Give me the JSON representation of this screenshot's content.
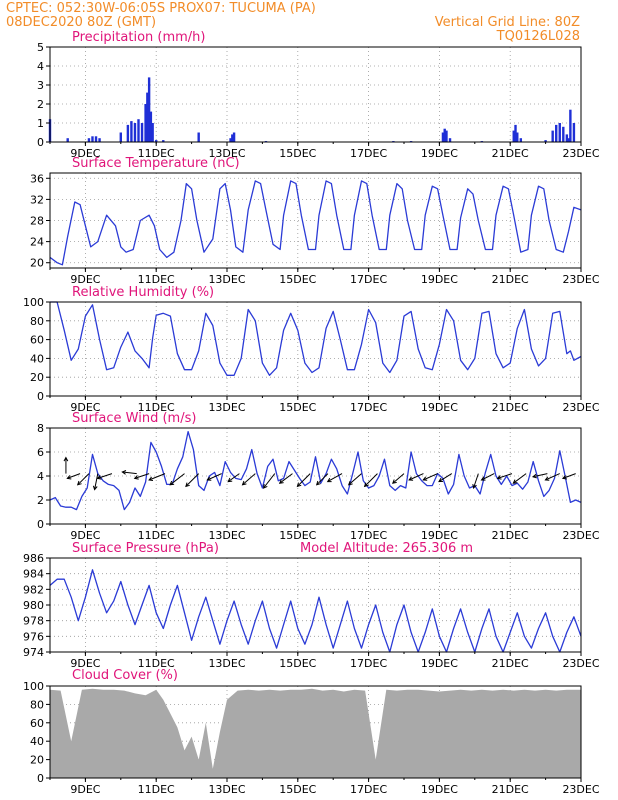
{
  "header": {
    "line1": "CPTEC:   052:30W-06:05S   PROX07: TUCUMA (PA)",
    "line2": "08DEC2020 80Z (GMT)",
    "right1": "Vertical Grid Line: 80Z",
    "right2": "TQ0126L028"
  },
  "colors": {
    "header": "#f28c28",
    "title": "#e0157a",
    "line": "#2b3bd6",
    "bar": "#1f2fd6",
    "cloud": "#a9a9a9",
    "wind_arrow": "#000000",
    "grid": "#999999"
  },
  "x_axis": {
    "start_day": 8,
    "end_day": 23,
    "tick_labels": [
      "9DEC",
      "11DEC",
      "13DEC",
      "15DEC",
      "17DEC",
      "19DEC",
      "21DEC",
      "23DEC"
    ],
    "tick_days": [
      9,
      11,
      13,
      15,
      17,
      19,
      21,
      23
    ]
  },
  "chart_data": [
    {
      "type": "bar",
      "title": "Precipitation (mm/h)",
      "ylim": [
        0,
        5
      ],
      "yticks": [
        0,
        1,
        2,
        3,
        4,
        5
      ],
      "x": [
        8.0,
        8.5,
        9.1,
        9.2,
        9.3,
        9.4,
        10.0,
        10.2,
        10.3,
        10.4,
        10.5,
        10.6,
        10.7,
        10.75,
        10.8,
        10.85,
        10.9,
        11.0,
        11.2,
        12.2,
        13.1,
        13.15,
        13.2,
        14.1,
        17.7,
        18.2,
        19.1,
        19.15,
        19.2,
        19.3,
        20.2,
        21.1,
        21.15,
        21.2,
        21.3,
        22.0,
        22.2,
        22.3,
        22.4,
        22.5,
        22.6,
        22.65,
        22.7,
        22.8
      ],
      "values": [
        1.2,
        0.2,
        0.2,
        0.3,
        0.3,
        0.2,
        0.5,
        0.9,
        1.1,
        1.0,
        1.2,
        1.0,
        2.0,
        2.6,
        3.4,
        1.6,
        1.0,
        0.1,
        0.1,
        0.5,
        0.2,
        0.4,
        0.5,
        0.05,
        0.05,
        0.05,
        0.5,
        0.7,
        0.6,
        0.2,
        0.05,
        0.6,
        0.9,
        0.5,
        0.2,
        0.1,
        0.6,
        0.9,
        1.0,
        0.8,
        0.4,
        0.2,
        1.7,
        1.0
      ]
    },
    {
      "type": "line",
      "title": "Surface Temperature (nC)",
      "ylim": [
        19,
        37
      ],
      "yticks": [
        20,
        24,
        28,
        32,
        36
      ],
      "x": [
        8.0,
        8.2,
        8.35,
        8.5,
        8.7,
        8.85,
        9.0,
        9.15,
        9.35,
        9.6,
        9.85,
        10.0,
        10.15,
        10.35,
        10.55,
        10.8,
        10.95,
        11.1,
        11.3,
        11.5,
        11.7,
        11.85,
        12.0,
        12.15,
        12.35,
        12.6,
        12.8,
        12.95,
        13.1,
        13.25,
        13.45,
        13.6,
        13.8,
        13.95,
        14.1,
        14.3,
        14.5,
        14.6,
        14.8,
        14.95,
        15.1,
        15.3,
        15.5,
        15.6,
        15.8,
        15.95,
        16.1,
        16.3,
        16.5,
        16.6,
        16.8,
        16.95,
        17.1,
        17.3,
        17.5,
        17.6,
        17.8,
        17.95,
        18.1,
        18.3,
        18.5,
        18.6,
        18.8,
        18.95,
        19.1,
        19.3,
        19.5,
        19.6,
        19.8,
        19.95,
        20.1,
        20.3,
        20.5,
        20.6,
        20.8,
        20.95,
        21.1,
        21.3,
        21.5,
        21.6,
        21.8,
        21.95,
        22.1,
        22.3,
        22.5,
        22.65,
        22.8,
        23.0
      ],
      "values": [
        21,
        20,
        19.6,
        25,
        31.5,
        31,
        27,
        23,
        24,
        29,
        27,
        23,
        22,
        22.5,
        28,
        29,
        27,
        22.5,
        21,
        22,
        28,
        35,
        34,
        28,
        22,
        24.5,
        34,
        35,
        30,
        23,
        22,
        30,
        35.5,
        35,
        30,
        23.5,
        22.5,
        29,
        35.5,
        35,
        29,
        22.5,
        22.5,
        29,
        35.5,
        35,
        29,
        22.5,
        22.5,
        29,
        35.5,
        35,
        29,
        22.5,
        22.5,
        29,
        35,
        34,
        28,
        22.5,
        22.5,
        29,
        34.5,
        34,
        29,
        22.5,
        22.5,
        28.5,
        34,
        33,
        28,
        22.5,
        22.5,
        29,
        34.5,
        34,
        29,
        22,
        22.5,
        29,
        34.5,
        34,
        28,
        22.5,
        22,
        26,
        30.5,
        30
      ]
    },
    {
      "type": "line",
      "title": "Relative Humidity (%)",
      "ylim": [
        0,
        100
      ],
      "yticks": [
        0,
        20,
        40,
        60,
        80,
        100
      ],
      "x": [
        8.0,
        8.2,
        8.4,
        8.6,
        8.8,
        9.0,
        9.2,
        9.4,
        9.6,
        9.8,
        10.0,
        10.2,
        10.4,
        10.6,
        10.8,
        10.9,
        11.0,
        11.2,
        11.4,
        11.6,
        11.8,
        12.0,
        12.2,
        12.4,
        12.6,
        12.8,
        13.0,
        13.2,
        13.4,
        13.6,
        13.8,
        14.0,
        14.2,
        14.4,
        14.6,
        14.8,
        15.0,
        15.2,
        15.4,
        15.6,
        15.8,
        16.0,
        16.2,
        16.4,
        16.6,
        16.8,
        17.0,
        17.2,
        17.4,
        17.6,
        17.8,
        18.0,
        18.2,
        18.4,
        18.6,
        18.8,
        19.0,
        19.2,
        19.4,
        19.6,
        19.8,
        20.0,
        20.2,
        20.4,
        20.6,
        20.8,
        21.0,
        21.2,
        21.4,
        21.6,
        21.8,
        22.0,
        22.2,
        22.4,
        22.6,
        22.7,
        22.8,
        23.0
      ],
      "values": [
        100,
        100,
        70,
        38,
        50,
        85,
        97,
        60,
        28,
        30,
        52,
        68,
        48,
        40,
        30,
        62,
        86,
        88,
        85,
        45,
        28,
        28,
        48,
        88,
        75,
        35,
        22,
        22,
        40,
        92,
        80,
        35,
        22,
        30,
        70,
        88,
        70,
        35,
        25,
        30,
        72,
        90,
        60,
        28,
        28,
        55,
        92,
        78,
        35,
        25,
        38,
        85,
        90,
        50,
        30,
        28,
        55,
        92,
        80,
        38,
        28,
        40,
        88,
        90,
        45,
        30,
        35,
        72,
        92,
        50,
        32,
        40,
        88,
        90,
        45,
        48,
        38,
        42
      ]
    },
    {
      "type": "line",
      "title": "Surface Wind (m/s)",
      "ylim": [
        0,
        8
      ],
      "yticks": [
        0,
        2,
        4,
        6,
        8
      ],
      "x": [
        8.0,
        8.15,
        8.3,
        8.45,
        8.6,
        8.75,
        8.9,
        9.05,
        9.2,
        9.35,
        9.5,
        9.65,
        9.8,
        9.95,
        10.1,
        10.25,
        10.4,
        10.55,
        10.7,
        10.85,
        11.0,
        11.15,
        11.3,
        11.45,
        11.6,
        11.75,
        11.9,
        12.05,
        12.2,
        12.35,
        12.5,
        12.65,
        12.8,
        12.95,
        13.1,
        13.25,
        13.4,
        13.55,
        13.7,
        13.85,
        14.0,
        14.15,
        14.3,
        14.45,
        14.6,
        14.75,
        14.9,
        15.05,
        15.2,
        15.35,
        15.5,
        15.65,
        15.8,
        15.95,
        16.1,
        16.25,
        16.4,
        16.55,
        16.7,
        16.85,
        17.0,
        17.15,
        17.3,
        17.45,
        17.6,
        17.75,
        17.9,
        18.05,
        18.2,
        18.35,
        18.5,
        18.65,
        18.8,
        18.95,
        19.1,
        19.25,
        19.4,
        19.55,
        19.7,
        19.85,
        20.0,
        20.15,
        20.3,
        20.45,
        20.6,
        20.75,
        20.9,
        21.05,
        21.2,
        21.35,
        21.5,
        21.65,
        21.8,
        21.95,
        22.1,
        22.25,
        22.4,
        22.55,
        22.7,
        22.85,
        23.0
      ],
      "values": [
        2.0,
        2.2,
        1.5,
        1.4,
        1.4,
        1.2,
        2.3,
        3.0,
        5.8,
        4.2,
        3.6,
        3.3,
        3.2,
        2.8,
        1.2,
        1.8,
        3.0,
        2.3,
        3.5,
        6.8,
        6.0,
        4.8,
        3.3,
        3.3,
        4.6,
        5.6,
        7.7,
        6.2,
        3.2,
        2.8,
        4.0,
        4.3,
        3.2,
        5.2,
        4.3,
        3.8,
        3.7,
        4.6,
        6.2,
        4.2,
        3.0,
        4.8,
        5.4,
        3.6,
        3.8,
        5.2,
        4.5,
        3.8,
        3.2,
        3.5,
        5.6,
        3.4,
        4.2,
        5.4,
        4.6,
        3.2,
        2.5,
        4.2,
        6.0,
        3.6,
        3.0,
        3.2,
        4.0,
        5.4,
        3.2,
        2.8,
        3.2,
        3.0,
        6.0,
        4.2,
        3.6,
        3.2,
        3.2,
        4.2,
        3.8,
        2.5,
        3.3,
        5.8,
        4.0,
        3.0,
        3.2,
        2.5,
        4.3,
        5.8,
        4.0,
        3.3,
        4.0,
        3.2,
        3.4,
        2.9,
        3.5,
        5.2,
        3.6,
        2.3,
        2.8,
        3.8,
        6.1,
        4.0,
        1.8,
        2.0,
        1.8
      ]
    },
    {
      "type": "line",
      "title": "Surface Pressure (hPa)",
      "subtitle": "Model Altitude: 265.306 m",
      "ylim": [
        974,
        986
      ],
      "yticks": [
        974,
        976,
        978,
        980,
        982,
        984,
        986
      ],
      "x": [
        8.0,
        8.2,
        8.4,
        8.6,
        8.8,
        9.0,
        9.2,
        9.4,
        9.6,
        9.8,
        10.0,
        10.2,
        10.4,
        10.6,
        10.8,
        11.0,
        11.2,
        11.4,
        11.6,
        11.8,
        12.0,
        12.2,
        12.4,
        12.6,
        12.8,
        13.0,
        13.2,
        13.4,
        13.6,
        13.8,
        14.0,
        14.2,
        14.4,
        14.6,
        14.8,
        15.0,
        15.2,
        15.4,
        15.6,
        15.8,
        16.0,
        16.2,
        16.4,
        16.6,
        16.8,
        17.0,
        17.2,
        17.4,
        17.6,
        17.8,
        18.0,
        18.2,
        18.4,
        18.6,
        18.8,
        19.0,
        19.2,
        19.4,
        19.6,
        19.8,
        20.0,
        20.2,
        20.4,
        20.6,
        20.8,
        21.0,
        21.2,
        21.4,
        21.6,
        21.8,
        22.0,
        22.2,
        22.4,
        22.6,
        22.8,
        23.0
      ],
      "values": [
        982.5,
        983.3,
        983.3,
        981.0,
        978.0,
        981.0,
        984.5,
        981.5,
        979.0,
        980.5,
        983.0,
        980.0,
        977.5,
        980.0,
        982.5,
        979.0,
        977.0,
        980.0,
        982.5,
        979.0,
        975.5,
        978.5,
        981.0,
        978.0,
        975.0,
        978.0,
        980.5,
        977.5,
        975.0,
        978.0,
        980.5,
        977.0,
        974.5,
        977.5,
        980.5,
        977.0,
        975.0,
        977.5,
        981.0,
        977.5,
        974.5,
        977.5,
        980.5,
        977.0,
        974.5,
        977.5,
        980.0,
        976.5,
        974.0,
        977.5,
        980.0,
        976.5,
        974.0,
        976.5,
        979.5,
        976.0,
        974.0,
        977.0,
        979.5,
        976.5,
        974.0,
        977.0,
        979.5,
        976.0,
        974.0,
        976.5,
        979.0,
        976.0,
        974.5,
        977.0,
        979.0,
        976.0,
        974.0,
        976.5,
        978.5,
        976.0
      ]
    },
    {
      "type": "area",
      "title": "Cloud Cover (%)",
      "ylim": [
        0,
        100
      ],
      "yticks": [
        0,
        20,
        40,
        60,
        80,
        100
      ],
      "x": [
        8.0,
        8.3,
        8.6,
        8.9,
        9.2,
        9.5,
        9.8,
        10.1,
        10.4,
        10.7,
        11.0,
        11.2,
        11.4,
        11.6,
        11.8,
        12.0,
        12.2,
        12.4,
        12.6,
        12.8,
        13.0,
        13.3,
        13.6,
        13.9,
        14.2,
        14.5,
        14.8,
        15.1,
        15.4,
        15.7,
        16.0,
        16.3,
        16.6,
        16.9,
        17.2,
        17.5,
        17.8,
        18.1,
        18.4,
        18.7,
        19.0,
        19.3,
        19.6,
        19.9,
        20.2,
        20.5,
        20.8,
        21.1,
        21.4,
        21.7,
        22.0,
        22.3,
        22.6,
        23.0
      ],
      "values": [
        96,
        95,
        40,
        96,
        97,
        96,
        96,
        95,
        92,
        90,
        96,
        85,
        70,
        55,
        30,
        45,
        20,
        60,
        10,
        50,
        85,
        95,
        96,
        95,
        96,
        95,
        96,
        96,
        97,
        95,
        96,
        94,
        96,
        95,
        20,
        96,
        95,
        96,
        96,
        95,
        94,
        95,
        96,
        95,
        96,
        95,
        96,
        95,
        96,
        95,
        96,
        95,
        96,
        96
      ]
    }
  ],
  "wind_vectors": [
    {
      "day": 8.45,
      "u": 0.0,
      "v": 1.0
    },
    {
      "day": 8.85,
      "u": -0.8,
      "v": -0.3
    },
    {
      "day": 9.1,
      "u": -0.7,
      "v": -0.7
    },
    {
      "day": 9.35,
      "u": -0.2,
      "v": -1.0
    },
    {
      "day": 9.75,
      "u": -0.9,
      "v": -0.3
    },
    {
      "day": 10.45,
      "u": -0.9,
      "v": 0.1
    },
    {
      "day": 10.8,
      "u": -0.9,
      "v": -0.3
    },
    {
      "day": 11.25,
      "u": -1.0,
      "v": -0.4
    },
    {
      "day": 11.8,
      "u": -0.9,
      "v": -0.7
    },
    {
      "day": 12.2,
      "u": -0.8,
      "v": -0.8
    },
    {
      "day": 12.85,
      "u": -0.9,
      "v": -0.4
    },
    {
      "day": 13.35,
      "u": -0.7,
      "v": -0.5
    },
    {
      "day": 13.8,
      "u": -0.8,
      "v": -0.7
    },
    {
      "day": 14.35,
      "u": -0.7,
      "v": -0.9
    },
    {
      "day": 14.85,
      "u": -0.8,
      "v": -0.6
    },
    {
      "day": 15.35,
      "u": -0.8,
      "v": -0.8
    },
    {
      "day": 15.85,
      "u": -0.7,
      "v": -0.7
    },
    {
      "day": 16.25,
      "u": -0.9,
      "v": -0.5
    },
    {
      "day": 16.8,
      "u": -0.8,
      "v": -0.7
    },
    {
      "day": 17.25,
      "u": -0.8,
      "v": -0.8
    },
    {
      "day": 18.0,
      "u": -0.7,
      "v": -0.6
    },
    {
      "day": 18.55,
      "u": -0.9,
      "v": -0.4
    },
    {
      "day": 18.95,
      "u": -0.9,
      "v": -0.4
    },
    {
      "day": 19.35,
      "u": -0.8,
      "v": -0.5
    },
    {
      "day": 20.1,
      "u": -0.3,
      "v": -0.9
    },
    {
      "day": 20.55,
      "u": -0.8,
      "v": -0.4
    },
    {
      "day": 21.05,
      "u": -0.9,
      "v": -0.3
    },
    {
      "day": 21.45,
      "u": -0.8,
      "v": -0.6
    },
    {
      "day": 22.05,
      "u": -0.9,
      "v": -0.2
    },
    {
      "day": 22.4,
      "u": -0.9,
      "v": -0.4
    },
    {
      "day": 22.85,
      "u": -0.8,
      "v": -0.3
    }
  ]
}
